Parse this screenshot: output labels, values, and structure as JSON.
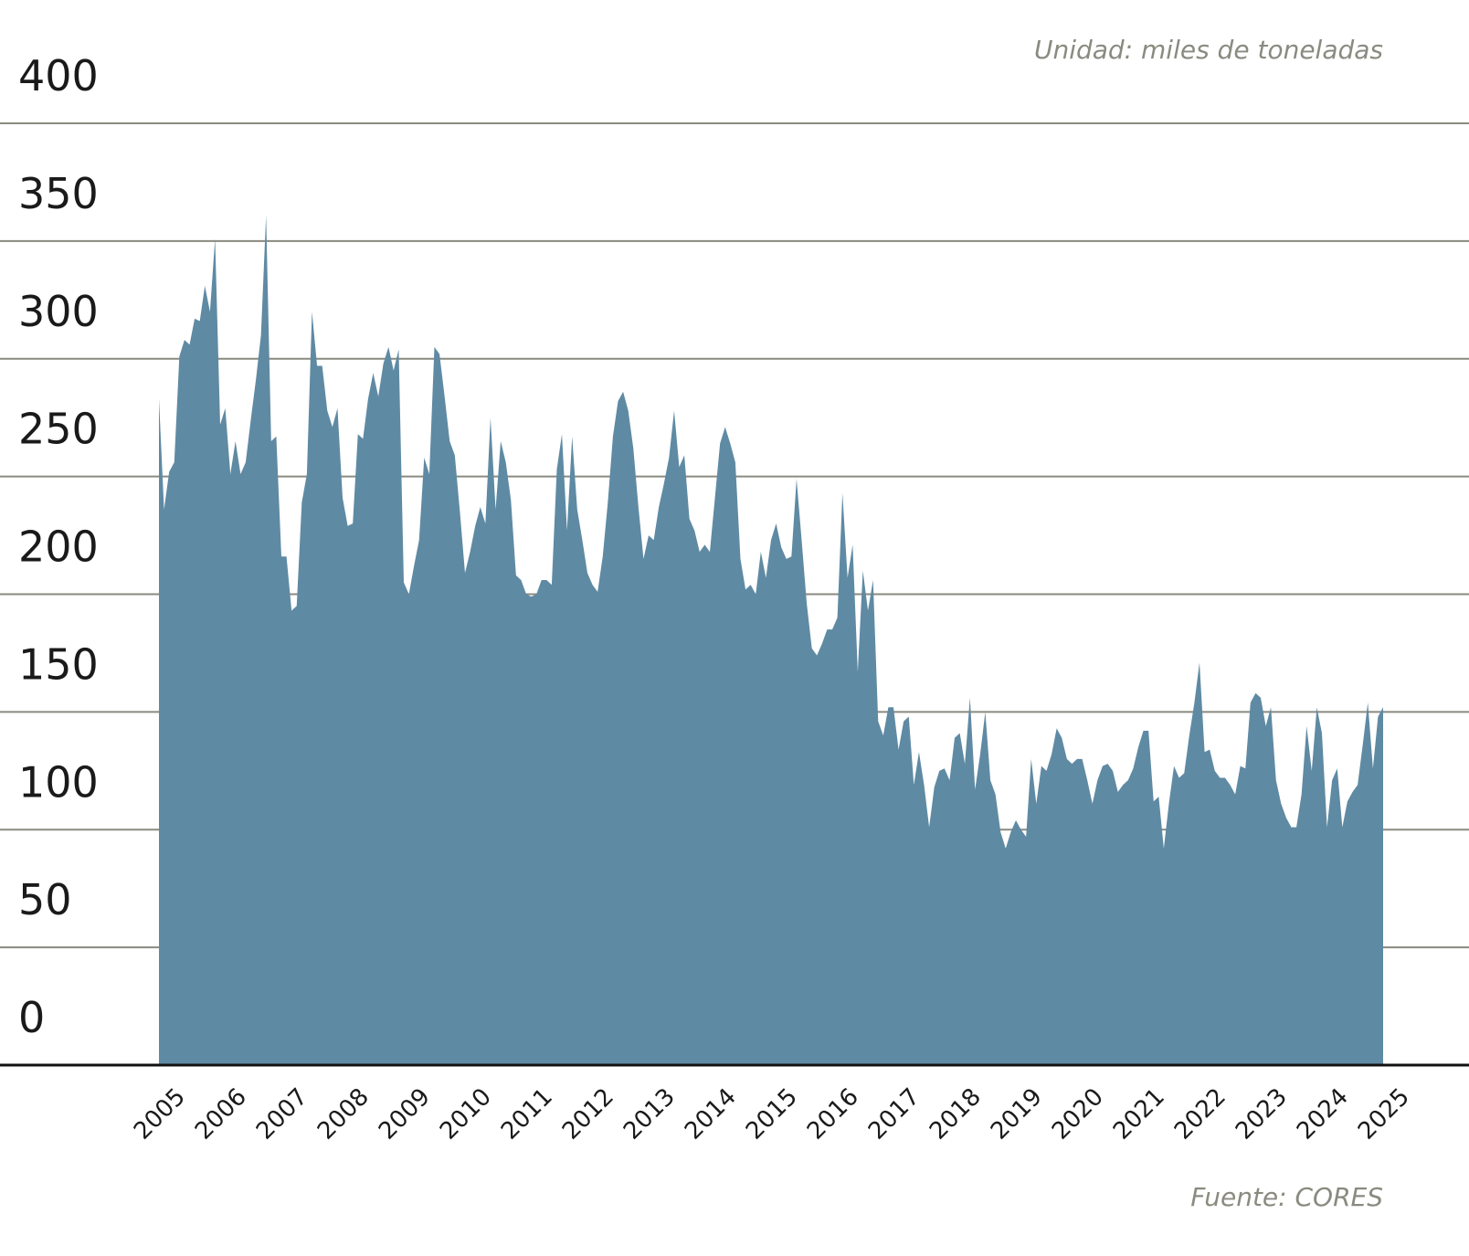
{
  "chart_data": {
    "type": "area",
    "subtitle": "Unidad: miles de toneladas",
    "source": "Fuente: CORES",
    "color": "#5f8aa3",
    "grid": true,
    "ylim": [
      0,
      400
    ],
    "yticks": [
      0,
      50,
      100,
      150,
      200,
      250,
      300,
      350,
      400
    ],
    "categories": [
      "2005",
      null,
      null,
      null,
      null,
      null,
      null,
      null,
      null,
      null,
      null,
      null,
      "2006",
      null,
      null,
      null,
      null,
      null,
      null,
      null,
      null,
      null,
      null,
      null,
      "2007",
      null,
      null,
      null,
      null,
      null,
      null,
      null,
      null,
      null,
      null,
      null,
      "2008",
      null,
      null,
      null,
      null,
      null,
      null,
      null,
      null,
      null,
      null,
      null,
      "2009",
      null,
      null,
      null,
      null,
      null,
      null,
      null,
      null,
      null,
      null,
      null,
      "2010",
      null,
      null,
      null,
      null,
      null,
      null,
      null,
      null,
      null,
      null,
      null,
      "2011",
      null,
      null,
      null,
      null,
      null,
      null,
      null,
      null,
      null,
      null,
      null,
      "2012",
      null,
      null,
      null,
      null,
      null,
      null,
      null,
      null,
      null,
      null,
      null,
      "2013",
      null,
      null,
      null,
      null,
      null,
      null,
      null,
      null,
      null,
      null,
      null,
      "2014",
      null,
      null,
      null,
      null,
      null,
      null,
      null,
      null,
      null,
      null,
      null,
      "2015",
      null,
      null,
      null,
      null,
      null,
      null,
      null,
      null,
      null,
      null,
      null,
      "2016",
      null,
      null,
      null,
      null,
      null,
      null,
      null,
      null,
      null,
      null,
      null,
      "2017",
      null,
      null,
      null,
      null,
      null,
      null,
      null,
      null,
      null,
      null,
      null,
      "2018",
      null,
      null,
      null,
      null,
      null,
      null,
      null,
      null,
      null,
      null,
      null,
      "2019",
      null,
      null,
      null,
      null,
      null,
      null,
      null,
      null,
      null,
      null,
      null,
      "2020",
      null,
      null,
      null,
      null,
      null,
      null,
      null,
      null,
      null,
      null,
      null,
      "2021",
      null,
      null,
      null,
      null,
      null,
      null,
      null,
      null,
      null,
      null,
      null,
      "2022",
      null,
      null,
      null,
      null,
      null,
      null,
      null,
      null,
      null,
      null,
      null,
      "2023",
      null,
      null,
      null,
      null,
      null,
      null,
      null,
      null,
      null,
      null,
      null,
      "2024",
      null,
      null,
      null,
      null,
      null,
      null,
      null,
      null,
      null,
      null,
      null,
      "2025"
    ],
    "values": [
      283,
      236,
      252,
      256,
      301,
      308,
      306,
      317,
      316,
      331,
      320,
      351,
      272,
      279,
      251,
      265,
      251,
      256,
      274,
      291,
      310,
      361,
      265,
      267,
      216,
      216,
      193,
      195,
      239,
      251,
      320,
      297,
      297,
      278,
      271,
      279,
      241,
      229,
      230,
      268,
      266,
      283,
      294,
      284,
      298,
      305,
      295,
      304,
      205,
      200,
      212,
      223,
      258,
      251,
      305,
      302,
      284,
      265,
      259,
      235,
      209,
      218,
      229,
      237,
      230,
      275,
      236,
      265,
      256,
      240,
      208,
      206,
      200,
      199,
      200,
      206,
      206,
      204,
      253,
      268,
      227,
      267,
      236,
      223,
      209,
      204,
      201,
      216,
      239,
      267,
      282,
      286,
      278,
      262,
      237,
      215,
      225,
      223,
      237,
      247,
      258,
      278,
      254,
      259,
      232,
      227,
      218,
      221,
      218,
      241,
      264,
      271,
      264,
      256,
      215,
      202,
      204,
      200,
      218,
      207,
      223,
      230,
      220,
      215,
      216,
      249,
      223,
      196,
      177,
      174,
      179,
      185,
      185,
      190,
      243,
      207,
      221,
      167,
      210,
      193,
      206,
      146,
      140,
      152,
      152,
      134,
      146,
      148,
      119,
      133,
      119,
      101,
      118,
      125,
      126,
      121,
      139,
      141,
      128,
      156,
      117,
      132,
      150,
      121,
      115,
      99,
      92,
      99,
      104,
      100,
      97,
      130,
      111,
      127,
      125,
      132,
      143,
      139,
      130,
      128,
      130,
      130,
      121,
      111,
      121,
      127,
      128,
      125,
      116,
      119,
      121,
      126,
      135,
      142,
      142,
      112,
      114,
      92,
      111,
      127,
      122,
      124,
      140,
      154,
      171,
      133,
      134,
      125,
      122,
      122,
      119,
      115,
      127,
      126,
      154,
      158,
      156,
      144,
      152,
      121,
      111,
      105,
      101,
      101,
      115,
      144,
      125,
      152,
      141,
      101,
      121,
      126,
      101,
      112,
      116,
      119,
      136,
      154,
      126,
      148,
      152
    ]
  }
}
